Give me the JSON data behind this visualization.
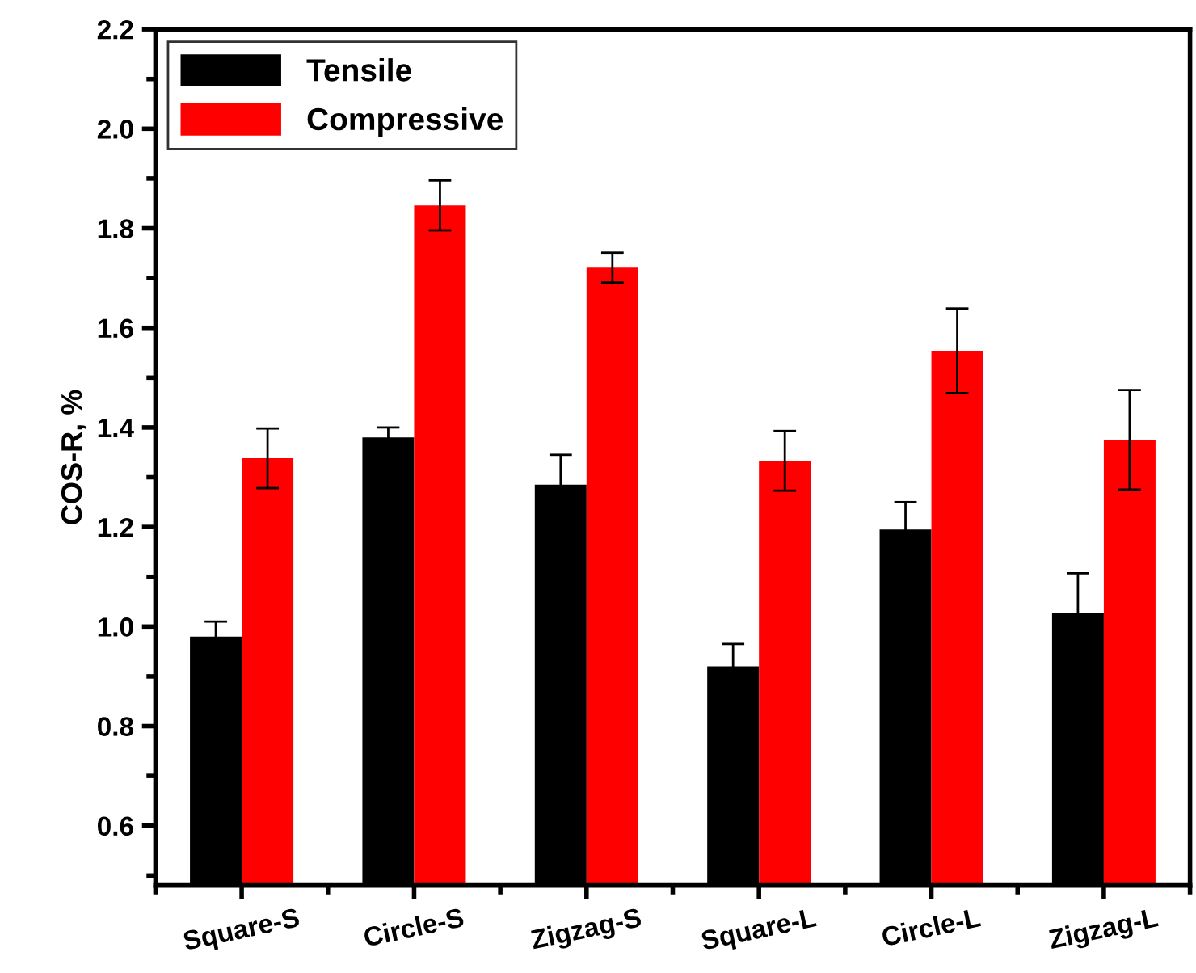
{
  "chart_data": {
    "type": "bar",
    "ylabel": "COS-R, %",
    "categories": [
      "Square-S",
      "Circle-S",
      "Zigzag-S",
      "Square-L",
      "Circle-L",
      "Zigzag-L"
    ],
    "series": [
      {
        "name": "Tensile",
        "color": "#000000",
        "values": [
          0.98,
          1.38,
          1.285,
          0.92,
          1.195,
          1.027
        ],
        "errors": [
          0.03,
          0.02,
          0.06,
          0.045,
          0.055,
          0.08
        ]
      },
      {
        "name": "Compressive",
        "color": "#ff0000",
        "values": [
          1.338,
          1.846,
          1.721,
          1.333,
          1.554,
          1.375
        ],
        "errors": [
          0.06,
          0.05,
          0.03,
          0.06,
          0.085,
          0.1
        ]
      }
    ],
    "ylim": [
      0.48,
      2.2
    ],
    "yticks": [
      0.6,
      0.8,
      {
        "value": 1,
        "label": "1.0"
      },
      1.2,
      1.4,
      1.6,
      1.8,
      {
        "value": 2,
        "label": "2.0"
      },
      2.2
    ],
    "grid": false,
    "legend": "top left"
  }
}
